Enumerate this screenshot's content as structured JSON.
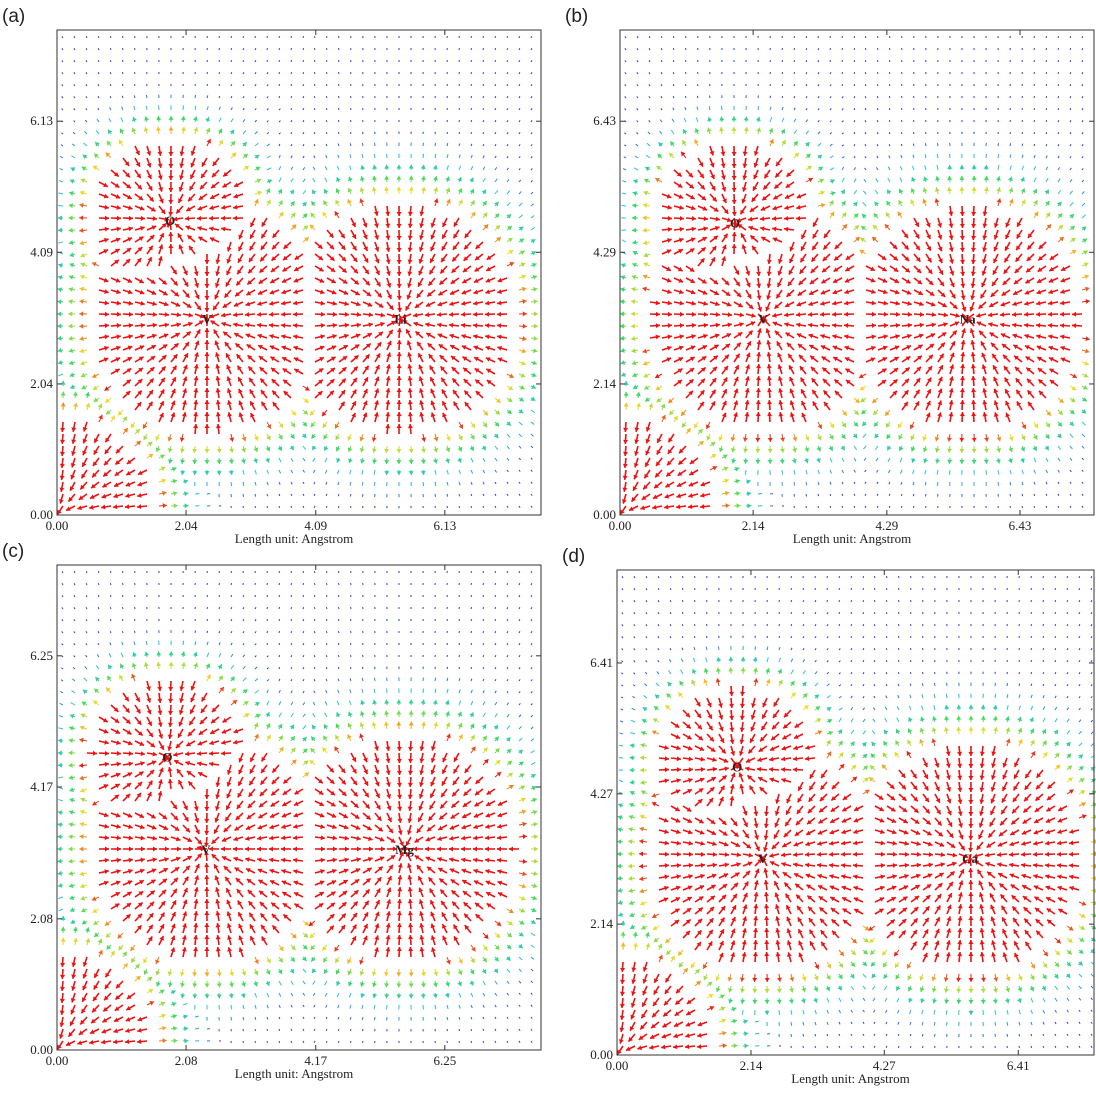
{
  "chart_data": [
    {
      "type": "vector_field",
      "label": "(a)",
      "xlabel": "Length unit: Angstrom",
      "xlim": [
        0,
        7.65
      ],
      "ylim": [
        0,
        7.55
      ],
      "xticks": [
        {
          "value": 0,
          "label": "0.00"
        },
        2.04,
        4.09,
        6.13
      ],
      "yticks": [
        {
          "value": 0,
          "label": "0.00"
        },
        2.04,
        4.09,
        6.13
      ],
      "atoms": [
        {
          "name": "O",
          "x": 1.79,
          "y": 4.59
        },
        {
          "name": "V",
          "x": 2.37,
          "y": 3.06
        },
        {
          "name": "Li",
          "x": 5.43,
          "y": 3.06
        }
      ]
    },
    {
      "type": "vector_field",
      "label": "(b)",
      "xlabel": "Length unit: Angstrom",
      "xlim": [
        0,
        7.62
      ],
      "ylim": [
        0,
        7.92
      ],
      "xticks": [
        {
          "value": 0,
          "label": "0.00"
        },
        2.14,
        4.29,
        6.43
      ],
      "yticks": [
        {
          "value": 0,
          "label": "0.00"
        },
        2.14,
        4.29,
        6.43
      ],
      "atoms": [
        {
          "name": "O",
          "x": 1.85,
          "y": 4.78
        },
        {
          "name": "V",
          "x": 2.3,
          "y": 3.21
        },
        {
          "name": "Na",
          "x": 5.59,
          "y": 3.21
        }
      ]
    },
    {
      "type": "vector_field",
      "label": "(c)",
      "xlabel": "Length unit: Angstrom",
      "xlim": [
        0,
        7.8
      ],
      "ylim": [
        0,
        7.69
      ],
      "xticks": [
        {
          "value": 0,
          "label": "0.00"
        },
        2.08,
        4.17,
        6.25
      ],
      "yticks": [
        {
          "value": 0,
          "label": "0.00"
        },
        2.08,
        4.17,
        6.25
      ],
      "atoms": [
        {
          "name": "O",
          "x": 1.78,
          "y": 4.65
        },
        {
          "name": "V",
          "x": 2.4,
          "y": 3.19
        },
        {
          "name": "Mg",
          "x": 5.6,
          "y": 3.19
        }
      ]
    },
    {
      "type": "vector_field",
      "label": "(d)",
      "xlabel": "Length unit: Angstrom",
      "xlim": [
        0,
        7.62
      ],
      "ylim": [
        0,
        7.93
      ],
      "xticks": [
        {
          "value": 0,
          "label": "0.00"
        },
        2.14,
        4.27,
        6.41
      ],
      "yticks": [
        {
          "value": 0,
          "label": "0.00"
        },
        2.14,
        4.27,
        6.41
      ],
      "atoms": [
        {
          "name": "O",
          "x": 1.92,
          "y": 4.72
        },
        {
          "name": "V",
          "x": 2.33,
          "y": 3.22
        },
        {
          "name": "Ca",
          "x": 5.64,
          "y": 3.22
        }
      ]
    }
  ]
}
